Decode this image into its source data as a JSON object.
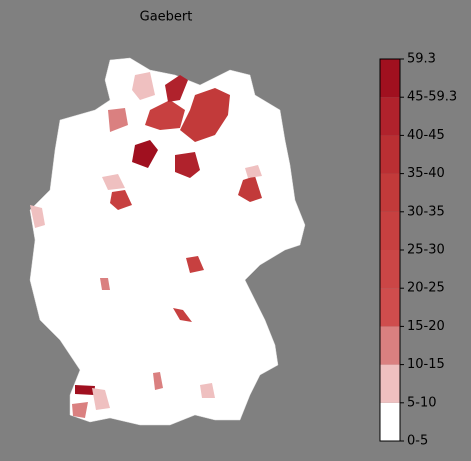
{
  "title": "Gaebert",
  "colorbar": {
    "labels": [
      "0-5",
      "5-10",
      "10-15",
      "15-20",
      "20-25",
      "25-30",
      "30-35",
      "35-40",
      "40-45",
      "45-59.3",
      "59.3"
    ],
    "colors": [
      "#ffffff",
      "#efc0c0",
      "#da8080",
      "#cf4d4d",
      "#cb4646",
      "#c74040",
      "#c23a3a",
      "#ba2f33",
      "#b0222c",
      "#a0101f"
    ]
  }
}
